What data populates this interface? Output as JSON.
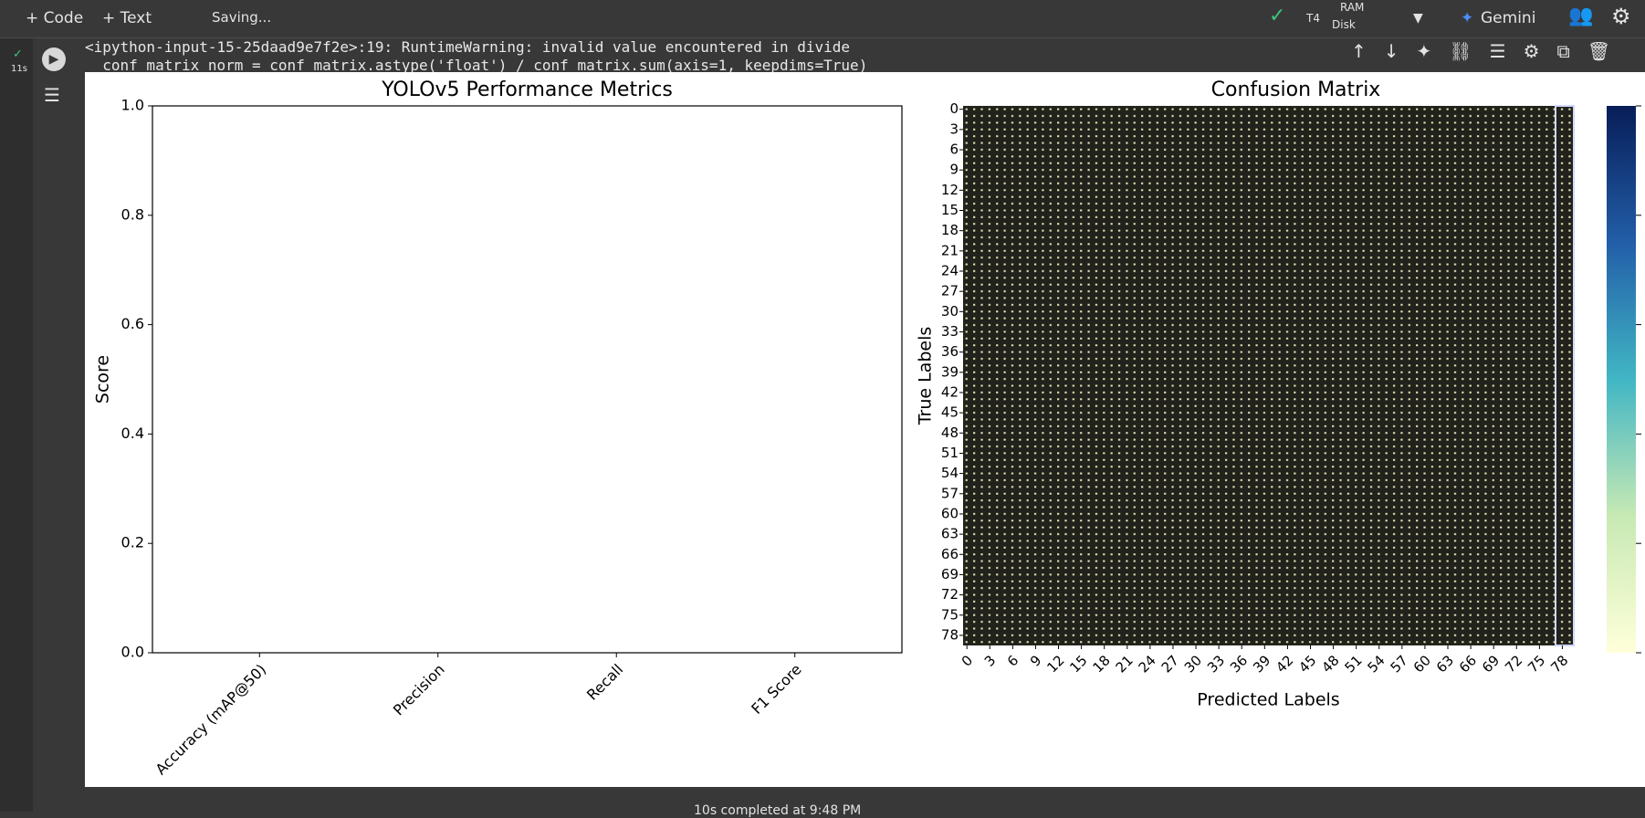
{
  "toolbar": {
    "code": "+ Code",
    "text": "+ Text",
    "status": "Saving...",
    "runtime": "T4",
    "ram": "RAM",
    "disk": "Disk",
    "gemini": "Gemini"
  },
  "cell": {
    "exec_time": "11s",
    "output": [
      "<ipython-input-15-25daad9e7f2e>:19: RuntimeWarning: invalid value encountered in divide",
      "  conf_matrix_norm = conf_matrix.astype('float') / conf_matrix.sum(axis=1, keepdims=True)"
    ]
  },
  "footer": "10s   completed at 9:48 PM",
  "chart_data": [
    {
      "type": "bar",
      "title": "YOLOv5 Performance Metrics",
      "ylabel": "Score",
      "categories": [
        "Accuracy (mAP@50)",
        "Precision",
        "Recall",
        "F1 Score"
      ],
      "values": [
        0,
        0,
        0,
        0
      ],
      "color": "#1f77b4",
      "ylim": [
        0,
        1
      ],
      "yticks": [
        {
          "value": 0,
          "label": "0.0"
        },
        {
          "value": 0.2,
          "label": "0.2"
        },
        {
          "value": 0.4,
          "label": "0.4"
        },
        {
          "value": 0.6,
          "label": "0.6"
        },
        {
          "value": 0.8,
          "label": "0.8"
        },
        {
          "value": 1,
          "label": "1.0"
        }
      ]
    },
    {
      "type": "heatmap",
      "title": "Confusion Matrix",
      "xlabel": "Predicted Labels",
      "ylabel": "True Labels",
      "xlim": [
        0,
        80
      ],
      "ylim": [
        0,
        80
      ],
      "xticks": [
        0,
        3,
        6,
        9,
        12,
        15,
        18,
        21,
        24,
        27,
        30,
        33,
        36,
        39,
        42,
        45,
        48,
        51,
        54,
        57,
        60,
        63,
        66,
        69,
        72,
        75,
        78
      ],
      "yticks": [
        0,
        3,
        6,
        9,
        12,
        15,
        18,
        21,
        24,
        27,
        30,
        33,
        36,
        39,
        42,
        45,
        48,
        51,
        54,
        57,
        60,
        63,
        66,
        69,
        72,
        75,
        78
      ]
    }
  ]
}
